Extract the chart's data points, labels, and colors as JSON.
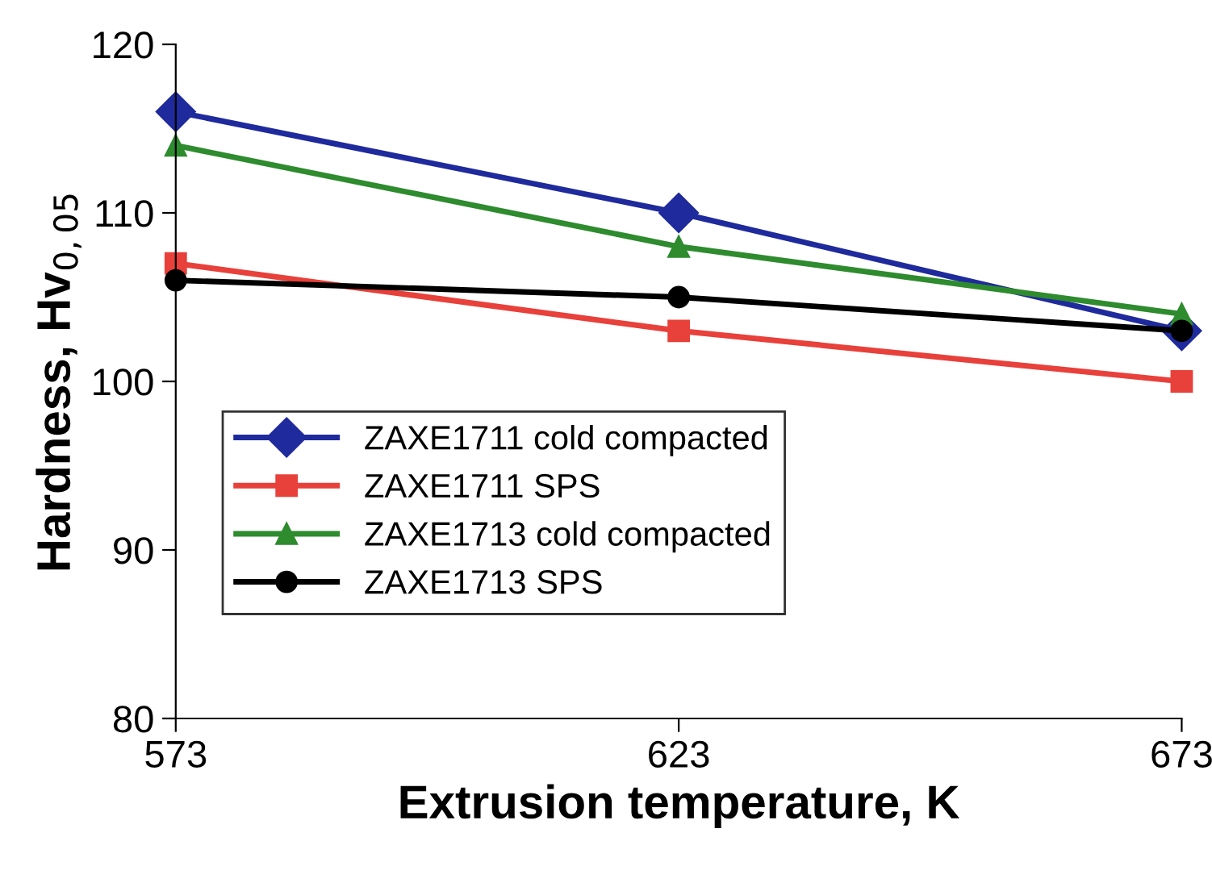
{
  "chart_data": {
    "type": "line",
    "xlabel": "Extrusion temperature, K",
    "ylabel": "Hardness, Hv$_{0,05}$",
    "x": [
      573,
      623,
      673
    ],
    "xlim": [
      573,
      673
    ],
    "xticks": [
      573,
      623,
      673
    ],
    "ylim": [
      80,
      120
    ],
    "yticks": [
      80,
      90,
      100,
      110,
      120
    ],
    "grid": false,
    "legend": "bottom left",
    "series": [
      {
        "name": "ZAXE1711 cold compacted",
        "color": "#1f2a9c",
        "marker": "diamond",
        "values": [
          116,
          110,
          103
        ]
      },
      {
        "name": "ZAXE1711 SPS",
        "color": "#e8403a",
        "marker": "square",
        "values": [
          107,
          103,
          100
        ]
      },
      {
        "name": "ZAXE1713 cold compacted",
        "color": "#2e8b2e",
        "marker": "triangle",
        "values": [
          114,
          108,
          104
        ]
      },
      {
        "name": "ZAXE1713 SPS",
        "color": "#000000",
        "marker": "circle",
        "values": [
          106,
          105,
          103
        ]
      }
    ]
  }
}
